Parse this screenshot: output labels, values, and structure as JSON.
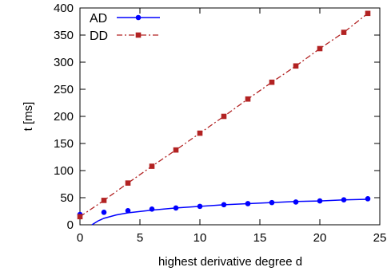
{
  "chart_data": {
    "type": "line",
    "xlabel": "highest derivative degree d",
    "ylabel": "t [ms]",
    "xlim": [
      0,
      25
    ],
    "ylim": [
      0,
      400
    ],
    "xticks": [
      0,
      5,
      10,
      15,
      20,
      25
    ],
    "yticks": [
      0,
      50,
      100,
      150,
      200,
      250,
      300,
      350,
      400
    ],
    "grid": false,
    "legend_position": "top-left",
    "series": [
      {
        "name": "AD",
        "color": "#0000ff",
        "marker": "circle",
        "line_style": "solid",
        "x": [
          0,
          2,
          4,
          6,
          8,
          10,
          12,
          14,
          16,
          18,
          20,
          22,
          24
        ],
        "y": [
          19,
          23,
          26,
          29,
          31,
          34,
          37,
          39,
          41,
          42,
          44,
          46,
          48
        ],
        "fit_curve": [
          [
            1,
            0
          ],
          [
            1.5,
            7
          ],
          [
            2,
            12
          ],
          [
            3,
            18
          ],
          [
            4,
            22
          ],
          [
            6,
            27
          ],
          [
            8,
            31
          ],
          [
            10,
            34
          ],
          [
            12,
            37
          ],
          [
            14,
            39
          ],
          [
            16,
            41
          ],
          [
            18,
            43
          ],
          [
            20,
            44
          ],
          [
            22,
            46
          ],
          [
            24,
            47
          ]
        ]
      },
      {
        "name": "DD",
        "color": "#b22222",
        "marker": "square",
        "line_style": "dash-dot",
        "x": [
          0,
          2,
          4,
          6,
          8,
          10,
          12,
          14,
          16,
          18,
          20,
          22,
          24
        ],
        "y": [
          15,
          45,
          77,
          108,
          138,
          169,
          200,
          232,
          263,
          293,
          325,
          355,
          390
        ]
      }
    ]
  }
}
